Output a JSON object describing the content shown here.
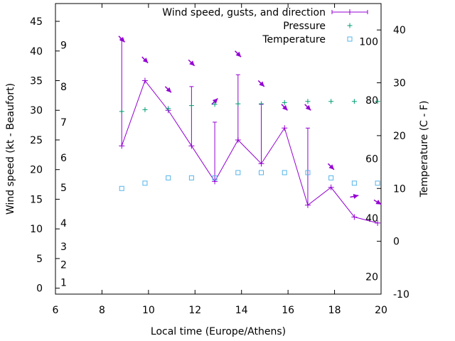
{
  "chart_data": {
    "type": "line",
    "xlabel": "Local time (Europe/Athens)",
    "ylabel_left": "Wind speed (kt - Beaufort)",
    "ylabel_right": "Temperature (C - F)",
    "xlim": [
      6,
      20
    ],
    "ylim_left": [
      -1,
      48
    ],
    "ylim_right": [
      -10,
      45
    ],
    "x_ticks": [
      "6",
      "8",
      "10",
      "12",
      "14",
      "16",
      "18",
      "20"
    ],
    "y_left_ticks": [
      "0",
      "5",
      "10",
      "15",
      "20",
      "25",
      "30",
      "35",
      "40",
      "45"
    ],
    "y_right_ticks": [
      "-10",
      "0",
      "10",
      "20",
      "30",
      "40"
    ],
    "beaufort_labels": [
      {
        "label": "1",
        "kt": 1
      },
      {
        "label": "2",
        "kt": 4
      },
      {
        "label": "3",
        "kt": 7
      },
      {
        "label": "4",
        "kt": 11
      },
      {
        "label": "5",
        "kt": 17
      },
      {
        "label": "6",
        "kt": 22
      },
      {
        "label": "7",
        "kt": 28
      },
      {
        "label": "8",
        "kt": 34
      },
      {
        "label": "9",
        "kt": 41
      }
    ],
    "fahrenheit_labels": [
      {
        "label": "20",
        "celsius": -6.7
      },
      {
        "label": "40",
        "celsius": 4.4
      },
      {
        "label": "60",
        "celsius": 15.6
      },
      {
        "label": "80",
        "celsius": 26.7
      },
      {
        "label": "100",
        "celsius": 37.8
      }
    ],
    "series": [
      {
        "name": "Wind speed, gusts, and direction",
        "color": "#9400d3",
        "x": [
          8.85,
          9.85,
          10.85,
          11.85,
          12.85,
          13.85,
          14.85,
          15.85,
          16.85,
          17.85,
          18.85,
          19.85
        ],
        "values": [
          24,
          35,
          30,
          24,
          18,
          25,
          21,
          27,
          14,
          17,
          12,
          11
        ],
        "gusts": [
          42,
          35,
          30,
          34,
          28,
          36,
          31,
          27,
          27,
          17,
          12,
          11
        ]
      },
      {
        "name": "Pressure",
        "color": "#009e73",
        "x": [
          8.85,
          9.85,
          10.85,
          11.85,
          12.85,
          13.85,
          14.85,
          15.85,
          16.85,
          17.85,
          18.85,
          19.85
        ],
        "values_left_scale": [
          29.8,
          30.1,
          30.3,
          30.8,
          31.0,
          31.1,
          31.1,
          31.3,
          31.5,
          31.5,
          31.5,
          31.5
        ]
      },
      {
        "name": "Temperature",
        "color": "#56b4e9",
        "x": [
          8.85,
          9.85,
          10.85,
          11.85,
          12.85,
          13.85,
          14.85,
          15.85,
          16.85,
          17.85,
          18.85,
          19.85
        ],
        "values": [
          10,
          11,
          12,
          12,
          12,
          13,
          13,
          13,
          13,
          12,
          11,
          11
        ]
      }
    ],
    "wind_arrows": [
      {
        "x": 8.85,
        "kt": 42,
        "dx": 1,
        "dy": 1
      },
      {
        "x": 9.85,
        "kt": 38.5,
        "dx": 1,
        "dy": 1
      },
      {
        "x": 10.85,
        "kt": 33.5,
        "dx": 1,
        "dy": 1
      },
      {
        "x": 11.85,
        "kt": 38,
        "dx": 1,
        "dy": 1
      },
      {
        "x": 12.85,
        "kt": 31.5,
        "dx": 1,
        "dy": -1
      },
      {
        "x": 13.85,
        "kt": 39.5,
        "dx": 1,
        "dy": 1
      },
      {
        "x": 14.85,
        "kt": 34.5,
        "dx": 1,
        "dy": 1
      },
      {
        "x": 15.85,
        "kt": 30.5,
        "dx": 1,
        "dy": 1
      },
      {
        "x": 16.85,
        "kt": 30.5,
        "dx": 1,
        "dy": 1
      },
      {
        "x": 17.85,
        "kt": 20.5,
        "dx": 1,
        "dy": 1
      },
      {
        "x": 18.85,
        "kt": 15.5,
        "dx": 1,
        "dy": -0.2
      },
      {
        "x": 19.85,
        "kt": 14.5,
        "dx": 1,
        "dy": 0.6
      }
    ],
    "legend_position": "top-right",
    "grid": false
  }
}
